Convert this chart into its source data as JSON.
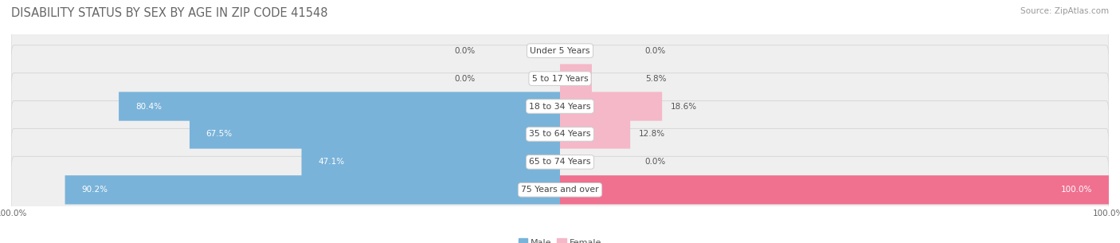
{
  "title": "Disability Status by Sex by Age in Zip Code 41548",
  "source": "Source: ZipAtlas.com",
  "categories": [
    "Under 5 Years",
    "5 to 17 Years",
    "18 to 34 Years",
    "35 to 64 Years",
    "65 to 74 Years",
    "75 Years and over"
  ],
  "male_values": [
    0.0,
    0.0,
    80.4,
    67.5,
    47.1,
    90.2
  ],
  "female_values": [
    0.0,
    5.8,
    18.6,
    12.8,
    0.0,
    100.0
  ],
  "male_color": "#7ab3d9",
  "female_color": "#f07090",
  "male_color_light": "#b8d4ea",
  "female_color_light": "#f5b8c8",
  "row_bg_color": "#efefef",
  "row_border_color": "#d8d8d8",
  "max_val": 100.0,
  "title_fontsize": 10.5,
  "label_fontsize": 7.5,
  "tick_fontsize": 7.5,
  "source_fontsize": 7.5,
  "category_fontsize": 7.8
}
